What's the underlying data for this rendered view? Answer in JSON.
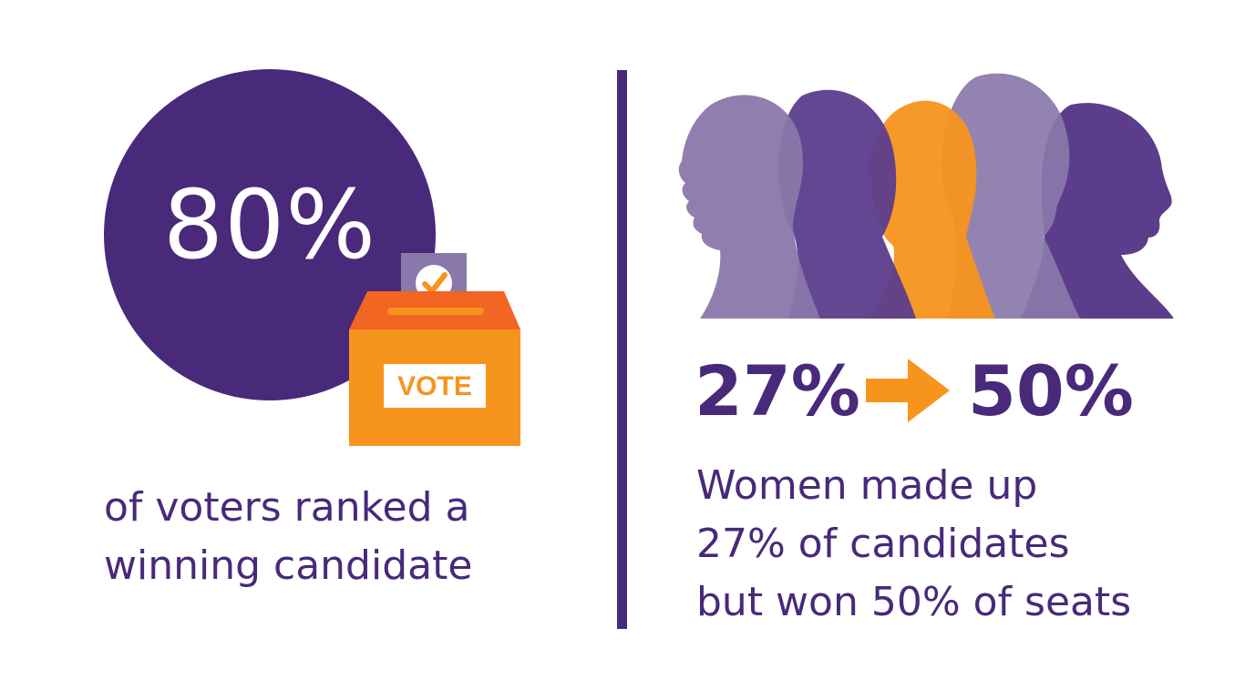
{
  "left_panel": {
    "stat": "80%",
    "caption_lines": [
      "of voters ranked a",
      "winning candidate"
    ],
    "ballot_label": "VOTE",
    "icon": "ballot-box-icon"
  },
  "right_panel": {
    "stat_from": "27%",
    "stat_to": "50%",
    "arrow_icon": "arrow-right-icon",
    "silhouettes_icon": "women-silhouettes-icon",
    "caption_lines": [
      "Women made up",
      "27% of candidates",
      "but won 50% of seats"
    ]
  },
  "colors": {
    "purple": "#48297a",
    "light_purple": "#8a78aa",
    "mid_purple": "#5b3d8c",
    "orange": "#f7941d",
    "orange_red": "#f26522"
  }
}
